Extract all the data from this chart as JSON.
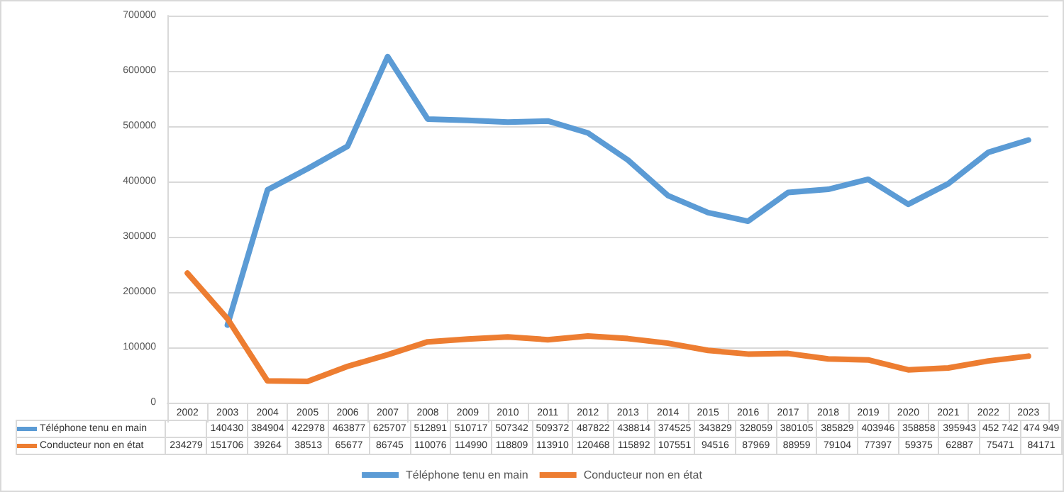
{
  "chart_data": {
    "type": "line",
    "categories": [
      "2002",
      "2003",
      "2004",
      "2005",
      "2006",
      "2007",
      "2008",
      "2009",
      "2010",
      "2011",
      "2012",
      "2013",
      "2014",
      "2015",
      "2016",
      "2017",
      "2018",
      "2019",
      "2020",
      "2021",
      "2022",
      "2023"
    ],
    "series": [
      {
        "name": "Téléphone tenu en main",
        "color": "#5b9bd5",
        "values": [
          null,
          140430,
          384904,
          422978,
          463877,
          625707,
          512891,
          510717,
          507342,
          509372,
          487822,
          438814,
          374525,
          343829,
          328059,
          380105,
          385829,
          403946,
          358858,
          395943,
          452742,
          474949
        ],
        "value_labels": [
          null,
          "140430",
          "384904",
          "422978",
          "463877",
          "625707",
          "512891",
          "510717",
          "507342",
          "509372",
          "487822",
          "438814",
          "374525",
          "343829",
          "328059",
          "380105",
          "385829",
          "403946",
          "358858",
          "395943",
          "452 742",
          "474 949"
        ]
      },
      {
        "name": "Conducteur non en état",
        "color": "#ed7d31",
        "values": [
          234279,
          151706,
          39264,
          38513,
          65677,
          86745,
          110076,
          114990,
          118809,
          113910,
          120468,
          115892,
          107551,
          94516,
          87969,
          88959,
          79104,
          77397,
          59375,
          62887,
          75471,
          84171
        ],
        "value_labels": [
          "234279",
          "151706",
          "39264",
          "38513",
          "65677",
          "86745",
          "110076",
          "114990",
          "118809",
          "113910",
          "120468",
          "115892",
          "107551",
          "94516",
          "87969",
          "88959",
          "79104",
          "77397",
          "59375",
          "62887",
          "75471",
          "84171"
        ]
      }
    ],
    "ylim": [
      0,
      700000
    ],
    "yticks": [
      0,
      100000,
      200000,
      300000,
      400000,
      500000,
      600000,
      700000
    ],
    "grid": "y",
    "legend": "bottom",
    "marker": "none",
    "line_style": "solid"
  }
}
